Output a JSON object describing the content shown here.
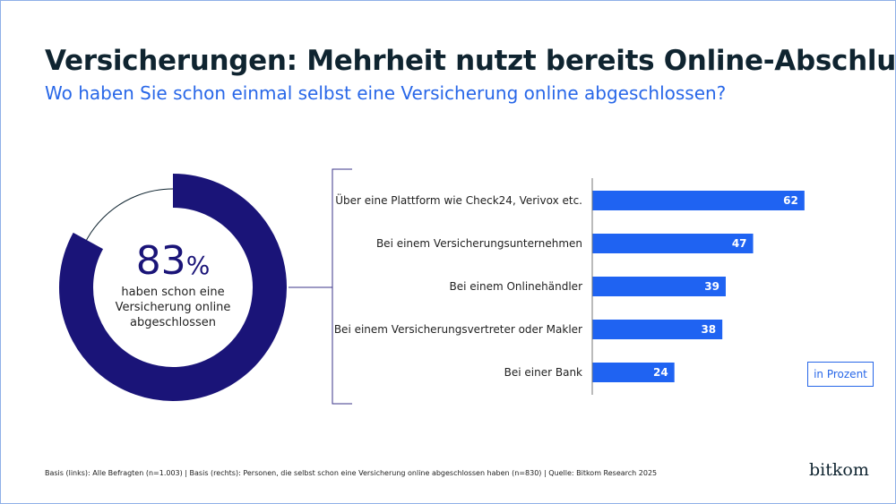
{
  "title": "Versicherungen: Mehrheit nutzt bereits Online-Abschluss",
  "subtitle": "Wo haben Sie schon einmal selbst eine Versicherung online abgeschlossen?",
  "colors": {
    "bar": "#1f63f2",
    "donut": "#1a1478",
    "title": "#0f2430",
    "subtitle": "#2867e8"
  },
  "unit_label": "in Prozent",
  "footer": "Basis (links): Alle Befragten (n=1.003) | Basis (rechts): Personen, die selbst schon eine Versicherung online abgeschlossen haben (n=830) | Quelle: Bitkom Research 2025",
  "logo": "bitkom",
  "chart_data": [
    {
      "type": "pie",
      "variant": "donut",
      "value": 83,
      "value_label": "83",
      "value_suffix": "%",
      "caption": "haben schon eine Versicherung online abgeschlossen"
    },
    {
      "type": "bar",
      "orientation": "horizontal",
      "categories": [
        "Über eine Plattform wie Check24, Verivox etc.",
        "Bei einem Versicherungsunternehmen",
        "Bei einem Onlinehändler",
        "Bei einem Versicherungsvertreter oder Makler",
        "Bei einer Bank"
      ],
      "values": [
        62,
        47,
        39,
        38,
        24
      ],
      "unit": "in Prozent",
      "grid": false
    }
  ]
}
